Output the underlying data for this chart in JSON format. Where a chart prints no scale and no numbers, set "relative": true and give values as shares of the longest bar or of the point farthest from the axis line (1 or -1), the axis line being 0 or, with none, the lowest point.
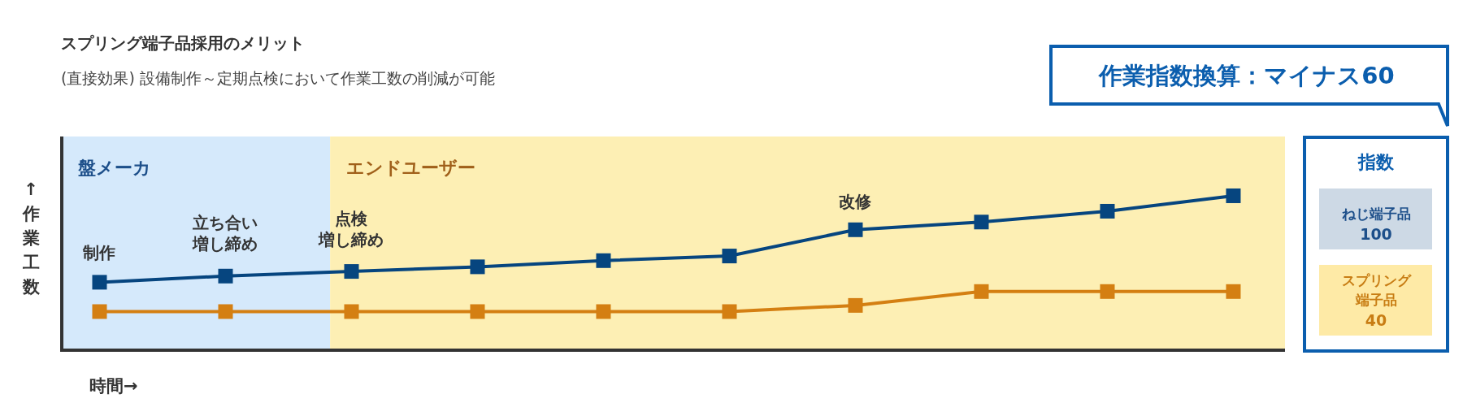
{
  "chart_data": [
    {
      "type": "line",
      "title": "スプリング端子品採用のメリット",
      "subtitle": "(直接効果) 設備制作～定期点検において作業工数の削減が可能",
      "ylabel": "↑作業工数",
      "xlabel": "時間→",
      "relative": true,
      "marker": "square",
      "line_style": "solid",
      "categories": [
        null,
        null,
        null,
        null,
        null,
        null,
        null,
        null,
        null,
        null
      ],
      "series": [
        {
          "color": "#06457f",
          "values": [
            0.44,
            0.48,
            0.51,
            0.54,
            0.58,
            0.61,
            0.78,
            0.83,
            0.9,
            1.0
          ]
        },
        {
          "color": "#d47f12",
          "values": [
            0.25,
            0.25,
            0.25,
            0.25,
            0.25,
            0.25,
            0.29,
            0.38,
            0.38,
            0.38
          ]
        }
      ],
      "annotations": [
        "盤メーカ",
        "エンドユーザー",
        "制作",
        "立ち合い",
        "増し締め",
        "点検",
        "増し締め",
        "改修"
      ]
    },
    {
      "type": "other",
      "title": "指数",
      "categories": [
        "ねじ端子品",
        "スプリング端子品"
      ],
      "values": [
        100,
        40
      ],
      "data_labels": true,
      "colors": [
        "#cdd9e5",
        "#feeaa6"
      ],
      "annotations": [
        "作業指数換算：マイナス60"
      ]
    }
  ]
}
